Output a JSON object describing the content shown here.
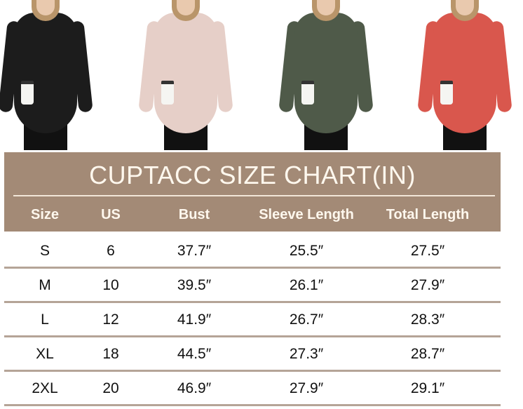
{
  "product_colors": [
    "#1c1c1c",
    "#e6cfc8",
    "#4f5a49",
    "#d9574d"
  ],
  "chart": {
    "title": "CUPTACC SIZE CHART(IN)",
    "header_color": "#a38a76",
    "columns": [
      "Size",
      "US",
      "Bust",
      "Sleeve Length",
      "Total Length"
    ],
    "rows": [
      [
        "S",
        "6",
        "37.7″",
        "25.5″",
        "27.5″"
      ],
      [
        "M",
        "10",
        "39.5″",
        "26.1″",
        "27.9″"
      ],
      [
        "L",
        "12",
        "41.9″",
        "26.7″",
        "28.3″"
      ],
      [
        "XL",
        "18",
        "44.5″",
        "27.3″",
        "28.7″"
      ],
      [
        "2XL",
        "20",
        "46.9″",
        "27.9″",
        "29.1″"
      ]
    ]
  }
}
